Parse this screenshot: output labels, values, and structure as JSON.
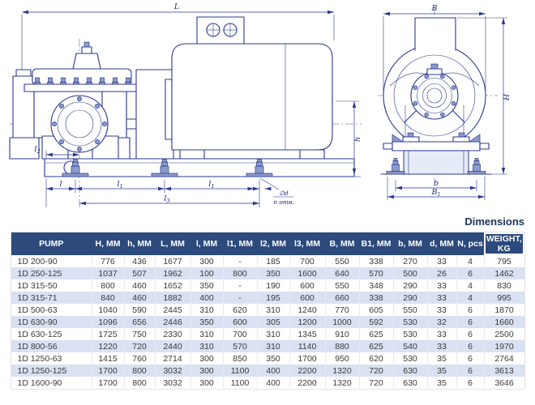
{
  "section_title": "Dimensions",
  "colors": {
    "drawing_line": "#2b3990",
    "header_bg": "#2c4a7c",
    "header_text": "#ffffff",
    "row_alt_bg": "#d9e1f2",
    "body_text": "#3a3a3a",
    "title_text": "#17365d"
  },
  "drawing": {
    "side_view": {
      "dim_labels": {
        "L": "L",
        "h": "h",
        "l": "l",
        "l1a": {
          "base": "l",
          "sub": "1"
        },
        "l1b": {
          "base": "l",
          "sub": "1"
        },
        "l2": {
          "base": "l",
          "sub": "2"
        },
        "l3": {
          "base": "l",
          "sub": "3"
        },
        "hole_dia": "∅d",
        "hole_count": "n отв."
      }
    },
    "end_view": {
      "dim_labels": {
        "B": "B",
        "H": "H",
        "b": "b",
        "B1": {
          "base": "B",
          "sub": "1"
        }
      }
    }
  },
  "table": {
    "columns": [
      "PUMP",
      "H, MM",
      "h, MM",
      "L, MM",
      "l, MM",
      "l1, MM",
      "l2, MM",
      "l3, MM",
      "B, MM",
      "B1, MM",
      "b, MM",
      "d, MM",
      "N, pcs",
      "WEIGHT, KG"
    ],
    "rows": [
      [
        "1D 200-90",
        "776",
        "436",
        "1677",
        "300",
        "-",
        "185",
        "700",
        "550",
        "338",
        "270",
        "33",
        "4",
        "795"
      ],
      [
        "1D 250-125",
        "1037",
        "507",
        "1962",
        "100",
        "800",
        "350",
        "1600",
        "640",
        "570",
        "500",
        "26",
        "6",
        "1462"
      ],
      [
        "1D 315-50",
        "800",
        "460",
        "1652",
        "350",
        "-",
        "190",
        "600",
        "550",
        "348",
        "290",
        "33",
        "4",
        "830"
      ],
      [
        "1D 315-71",
        "840",
        "460",
        "1882",
        "400",
        "-",
        "195",
        "600",
        "660",
        "338",
        "290",
        "33",
        "4",
        "995"
      ],
      [
        "1D 500-63",
        "1040",
        "590",
        "2445",
        "310",
        "620",
        "310",
        "1240",
        "770",
        "605",
        "550",
        "33",
        "6",
        "1870"
      ],
      [
        "1D 630-90",
        "1096",
        "656",
        "2446",
        "350",
        "600",
        "305",
        "1200",
        "1000",
        "592",
        "530",
        "32",
        "6",
        "1660"
      ],
      [
        "1D 630-125",
        "1725",
        "750",
        "2330",
        "310",
        "700",
        "310",
        "1345",
        "910",
        "625",
        "530",
        "33",
        "6",
        "2500"
      ],
      [
        "1D 800-56",
        "1220",
        "720",
        "2440",
        "310",
        "570",
        "310",
        "1140",
        "880",
        "625",
        "540",
        "33",
        "6",
        "1970"
      ],
      [
        "1D 1250-63",
        "1415",
        "760",
        "2714",
        "300",
        "850",
        "350",
        "1700",
        "950",
        "620",
        "530",
        "35",
        "6",
        "2764"
      ],
      [
        "1D 1250-125",
        "1700",
        "800",
        "3032",
        "300",
        "1100",
        "400",
        "2200",
        "1320",
        "720",
        "630",
        "35",
        "6",
        "3613"
      ],
      [
        "1D 1600-90",
        "1700",
        "800",
        "3032",
        "300",
        "1100",
        "400",
        "2200",
        "1320",
        "720",
        "630",
        "35",
        "6",
        "3646"
      ]
    ]
  }
}
